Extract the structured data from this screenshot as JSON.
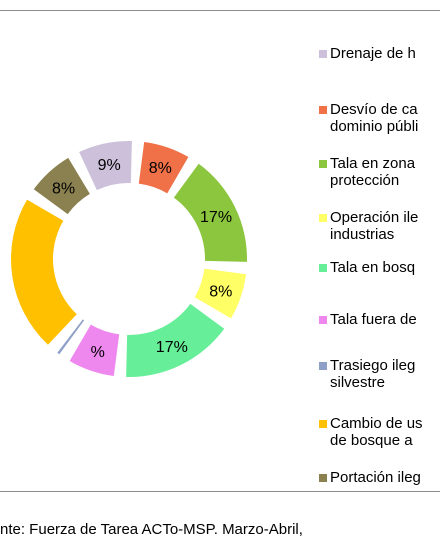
{
  "chart_data": {
    "type": "pie",
    "variant": "donut",
    "series": [
      {
        "label": "Drenaje de h",
        "value": 9,
        "display": "9%",
        "color": "#ccc0da"
      },
      {
        "label": "Desvío de ca\ndominio públi",
        "value": 8,
        "display": "8%",
        "color": "#f07048"
      },
      {
        "label": "Tala en zona\nprotección",
        "value": 17,
        "display": "17%",
        "color": "#8cc63f"
      },
      {
        "label": "Operación ile\nindustrias",
        "value": 8,
        "display": "8%",
        "color": "#ffff66"
      },
      {
        "label": "Tala en bosq",
        "value": 17,
        "display": "17%",
        "color": "#66ee99"
      },
      {
        "label": "Tala fuera de",
        "value": 8,
        "display": "%",
        "color": "#ee88ee"
      },
      {
        "label": "Trasiego ileg\nsilvestre",
        "value": 2,
        "display": "",
        "color": "#8ea0c8"
      },
      {
        "label": "Cambio de us\nde bosque a",
        "value": 23,
        "display": "",
        "color": "#ffc000"
      },
      {
        "label": "Portación ileg",
        "value": 8,
        "display": "8%",
        "color": "#8b8050"
      }
    ]
  },
  "footnote": "nte: Fuerza de Tarea ACTo-MSP. Marzo-Abril,"
}
